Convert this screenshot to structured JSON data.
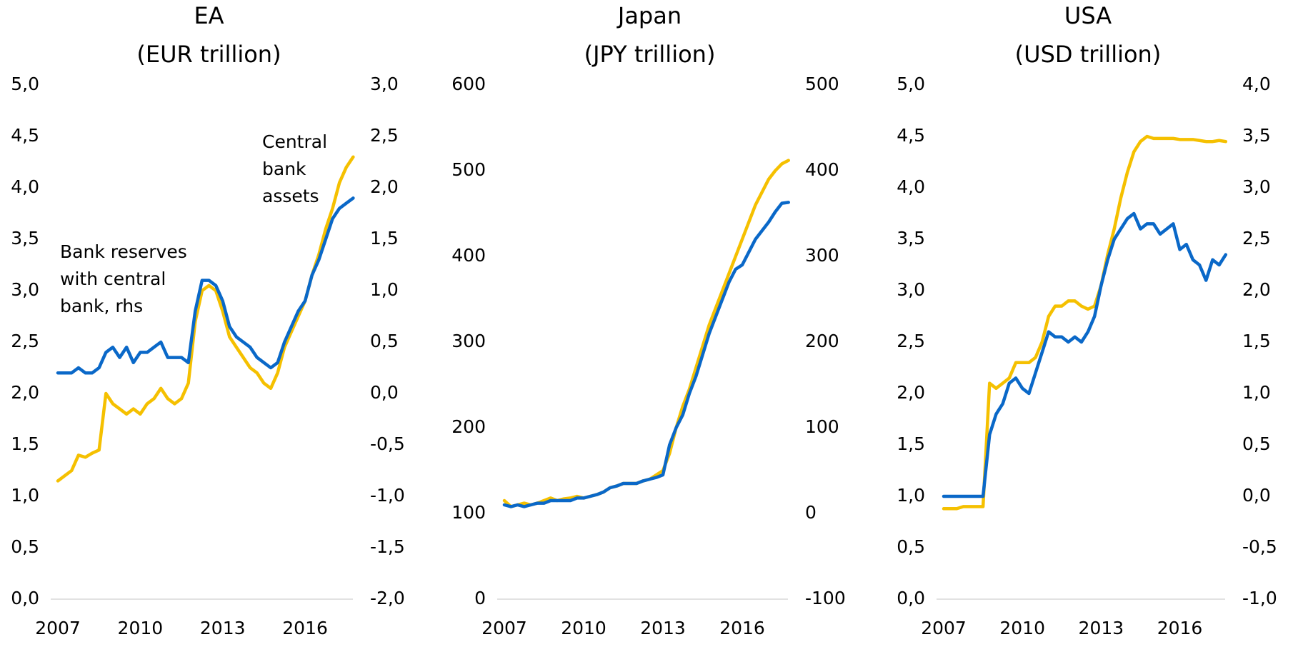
{
  "chart_data": [
    {
      "type": "line",
      "title": "EA",
      "subtitle": "(EUR trillion)",
      "x": [
        2007.0,
        2007.25,
        2007.5,
        2007.75,
        2008.0,
        2008.25,
        2008.5,
        2008.75,
        2009.0,
        2009.25,
        2009.5,
        2009.75,
        2010.0,
        2010.25,
        2010.5,
        2010.75,
        2011.0,
        2011.25,
        2011.5,
        2011.75,
        2012.0,
        2012.25,
        2012.5,
        2012.75,
        2013.0,
        2013.25,
        2013.5,
        2013.75,
        2014.0,
        2014.25,
        2014.5,
        2014.75,
        2015.0,
        2015.25,
        2015.5,
        2015.75,
        2016.0,
        2016.25,
        2016.5,
        2016.75,
        2017.0,
        2017.25,
        2017.5,
        2017.75
      ],
      "xlim": [
        2007,
        2018
      ],
      "xticks": [
        2007,
        2010,
        2013,
        2016
      ],
      "ylim": [
        0,
        5
      ],
      "yticks": [
        {
          "value": 0,
          "label": "0,0"
        },
        {
          "value": 0.5,
          "label": "0,5"
        },
        {
          "value": 1,
          "label": "1,0"
        },
        {
          "value": 1.5,
          "label": "1,5"
        },
        {
          "value": 2,
          "label": "2,0"
        },
        {
          "value": 2.5,
          "label": "2,5"
        },
        {
          "value": 3,
          "label": "3,0"
        },
        {
          "value": 3.5,
          "label": "3,5"
        },
        {
          "value": 4,
          "label": "4,0"
        },
        {
          "value": 4.5,
          "label": "4,5"
        },
        {
          "value": 5,
          "label": "5,0"
        }
      ],
      "y2lim": [
        -2,
        3
      ],
      "y2ticks": [
        {
          "value": -2,
          "label": "-2,0"
        },
        {
          "value": -1.5,
          "label": "-1,5"
        },
        {
          "value": -1,
          "label": "-1,0"
        },
        {
          "value": -0.5,
          "label": "-0,5"
        },
        {
          "value": 0,
          "label": "0,0"
        },
        {
          "value": 0.5,
          "label": "0,5"
        },
        {
          "value": 1,
          "label": "1,0"
        },
        {
          "value": 1.5,
          "label": "1,5"
        },
        {
          "value": 2,
          "label": "2,0"
        },
        {
          "value": 2.5,
          "label": "2,5"
        },
        {
          "value": 3,
          "label": "3,0"
        }
      ],
      "series": [
        {
          "color": "#f5c000",
          "values": [
            1.15,
            1.2,
            1.25,
            1.4,
            1.38,
            1.42,
            1.45,
            2.0,
            1.9,
            1.85,
            1.8,
            1.85,
            1.8,
            1.9,
            1.95,
            2.05,
            1.95,
            1.9,
            1.95,
            2.1,
            2.7,
            3.0,
            3.05,
            3.0,
            2.8,
            2.55,
            2.45,
            2.35,
            2.25,
            2.2,
            2.1,
            2.05,
            2.2,
            2.45,
            2.6,
            2.75,
            2.9,
            3.15,
            3.35,
            3.6,
            3.8,
            4.05,
            4.2,
            4.3
          ]
        },
        {
          "color": "#0a68c8",
          "axis": "y2",
          "values": [
            0.2,
            0.2,
            0.2,
            0.25,
            0.2,
            0.2,
            0.25,
            0.4,
            0.45,
            0.35,
            0.45,
            0.3,
            0.4,
            0.4,
            0.45,
            0.5,
            0.35,
            0.35,
            0.35,
            0.3,
            0.8,
            1.1,
            1.1,
            1.05,
            0.9,
            0.65,
            0.55,
            0.5,
            0.45,
            0.35,
            0.3,
            0.25,
            0.3,
            0.5,
            0.65,
            0.8,
            0.9,
            1.15,
            1.3,
            1.5,
            1.7,
            1.8,
            1.85,
            1.9
          ]
        }
      ],
      "annotations": [
        [
          "Bank reserves",
          "with central",
          "bank, rhs"
        ],
        [
          "Central",
          "bank",
          "assets"
        ]
      ]
    },
    {
      "type": "line",
      "title": "Japan",
      "subtitle": "(JPY trillion)",
      "x": [
        2007.0,
        2007.25,
        2007.5,
        2007.75,
        2008.0,
        2008.25,
        2008.5,
        2008.75,
        2009.0,
        2009.25,
        2009.5,
        2009.75,
        2010.0,
        2010.25,
        2010.5,
        2010.75,
        2011.0,
        2011.25,
        2011.5,
        2011.75,
        2012.0,
        2012.25,
        2012.5,
        2012.75,
        2013.0,
        2013.25,
        2013.5,
        2013.75,
        2014.0,
        2014.25,
        2014.5,
        2014.75,
        2015.0,
        2015.25,
        2015.5,
        2015.75,
        2016.0,
        2016.25,
        2016.5,
        2016.75,
        2017.0,
        2017.25,
        2017.5,
        2017.75
      ],
      "xlim": [
        2007,
        2018
      ],
      "xticks": [
        2007,
        2010,
        2013,
        2016
      ],
      "ylim": [
        0,
        600
      ],
      "yticks": [
        0,
        100,
        200,
        300,
        400,
        500,
        600
      ],
      "y2lim": [
        -100,
        500
      ],
      "y2ticks": [
        -100,
        0,
        100,
        200,
        300,
        400,
        500
      ],
      "series": [
        {
          "color": "#f5c000",
          "values": [
            115,
            108,
            110,
            112,
            110,
            112,
            115,
            118,
            115,
            117,
            118,
            120,
            118,
            120,
            122,
            125,
            130,
            132,
            135,
            135,
            135,
            138,
            140,
            145,
            150,
            170,
            200,
            225,
            245,
            270,
            295,
            320,
            340,
            360,
            380,
            400,
            420,
            440,
            460,
            475,
            490,
            500,
            508,
            512
          ]
        },
        {
          "color": "#0a68c8",
          "axis": "y2",
          "values": [
            10,
            8,
            10,
            8,
            10,
            12,
            12,
            15,
            15,
            15,
            15,
            18,
            18,
            20,
            22,
            25,
            30,
            32,
            35,
            35,
            35,
            38,
            40,
            42,
            45,
            80,
            100,
            115,
            140,
            160,
            185,
            210,
            230,
            250,
            270,
            285,
            290,
            305,
            320,
            330,
            340,
            352,
            362,
            363
          ]
        }
      ]
    },
    {
      "type": "line",
      "title": "USA",
      "subtitle": "(USD trillion)",
      "x": [
        2007.0,
        2007.25,
        2007.5,
        2007.75,
        2008.0,
        2008.25,
        2008.5,
        2008.75,
        2009.0,
        2009.25,
        2009.5,
        2009.75,
        2010.0,
        2010.25,
        2010.5,
        2010.75,
        2011.0,
        2011.25,
        2011.5,
        2011.75,
        2012.0,
        2012.25,
        2012.5,
        2012.75,
        2013.0,
        2013.25,
        2013.5,
        2013.75,
        2014.0,
        2014.25,
        2014.5,
        2014.75,
        2015.0,
        2015.25,
        2015.5,
        2015.75,
        2016.0,
        2016.25,
        2016.5,
        2016.75,
        2017.0,
        2017.25,
        2017.5,
        2017.75
      ],
      "xlim": [
        2007,
        2018
      ],
      "xticks": [
        2007,
        2010,
        2013,
        2016
      ],
      "ylim": [
        0,
        5
      ],
      "yticks": [
        {
          "value": 0,
          "label": "0,0"
        },
        {
          "value": 0.5,
          "label": "0,5"
        },
        {
          "value": 1,
          "label": "1,0"
        },
        {
          "value": 1.5,
          "label": "1,5"
        },
        {
          "value": 2,
          "label": "2,0"
        },
        {
          "value": 2.5,
          "label": "2,5"
        },
        {
          "value": 3,
          "label": "3,0"
        },
        {
          "value": 3.5,
          "label": "3,5"
        },
        {
          "value": 4,
          "label": "4,0"
        },
        {
          "value": 4.5,
          "label": "4,5"
        },
        {
          "value": 5,
          "label": "5,0"
        }
      ],
      "y2lim": [
        -1,
        4
      ],
      "y2ticks": [
        {
          "value": -1,
          "label": "-1,0"
        },
        {
          "value": -0.5,
          "label": "-0,5"
        },
        {
          "value": 0,
          "label": "0,0"
        },
        {
          "value": 0.5,
          "label": "0,5"
        },
        {
          "value": 1,
          "label": "1,0"
        },
        {
          "value": 1.5,
          "label": "1,5"
        },
        {
          "value": 2,
          "label": "2,0"
        },
        {
          "value": 2.5,
          "label": "2,5"
        },
        {
          "value": 3,
          "label": "3,0"
        },
        {
          "value": 3.5,
          "label": "3,5"
        },
        {
          "value": 4,
          "label": "4,0"
        }
      ],
      "series": [
        {
          "color": "#f5c000",
          "values": [
            0.88,
            0.88,
            0.88,
            0.9,
            0.9,
            0.9,
            0.9,
            2.1,
            2.05,
            2.1,
            2.15,
            2.3,
            2.3,
            2.3,
            2.35,
            2.5,
            2.75,
            2.85,
            2.85,
            2.9,
            2.9,
            2.85,
            2.82,
            2.85,
            3.05,
            3.35,
            3.6,
            3.9,
            4.15,
            4.35,
            4.45,
            4.5,
            4.48,
            4.48,
            4.48,
            4.48,
            4.47,
            4.47,
            4.47,
            4.46,
            4.45,
            4.45,
            4.46,
            4.45
          ]
        },
        {
          "color": "#0a68c8",
          "axis": "y2",
          "values": [
            0,
            0,
            0,
            0,
            0,
            0,
            0,
            0.6,
            0.8,
            0.9,
            1.1,
            1.15,
            1.05,
            1.0,
            1.2,
            1.4,
            1.6,
            1.55,
            1.55,
            1.5,
            1.55,
            1.5,
            1.6,
            1.75,
            2.05,
            2.3,
            2.5,
            2.6,
            2.7,
            2.75,
            2.6,
            2.65,
            2.65,
            2.55,
            2.6,
            2.65,
            2.4,
            2.45,
            2.3,
            2.25,
            2.1,
            2.3,
            2.25,
            2.35
          ]
        }
      ]
    }
  ]
}
